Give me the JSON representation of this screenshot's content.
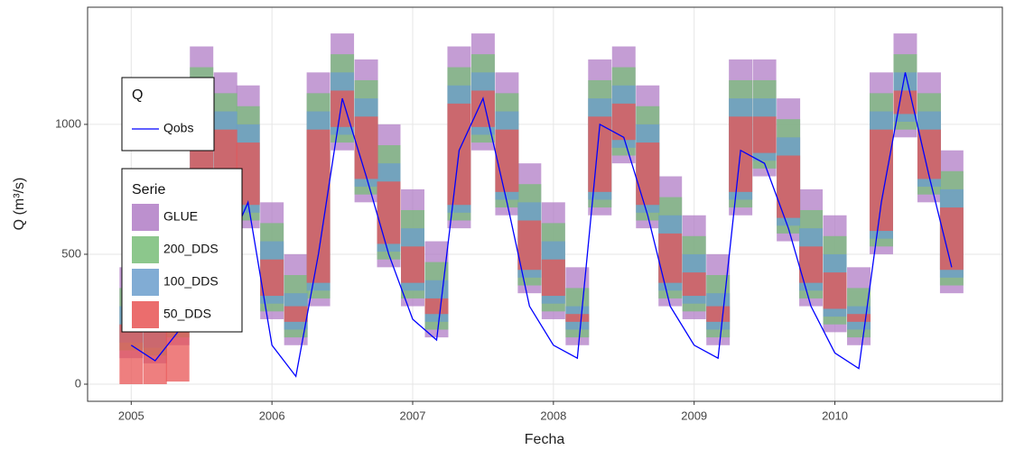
{
  "chart_data": {
    "type": "band",
    "xlabel": "Fecha",
    "ylabel": "Q (m³/s)",
    "x": [
      2005,
      2005.17,
      2005.33,
      2005.5,
      2005.67,
      2005.83,
      2006,
      2006.17,
      2006.33,
      2006.5,
      2006.67,
      2006.83,
      2007,
      2007.17,
      2007.33,
      2007.5,
      2007.67,
      2007.83,
      2008,
      2008.17,
      2008.33,
      2008.5,
      2008.67,
      2008.83,
      2009,
      2009.17,
      2009.33,
      2009.5,
      2009.67,
      2009.83,
      2010,
      2010.17,
      2010.33,
      2010.5,
      2010.67,
      2010.83
    ],
    "xlim": [
      2004.69,
      2011.19
    ],
    "xticks": [
      2005,
      2006,
      2007,
      2008,
      2009,
      2010
    ],
    "ylim": [
      -66,
      1451
    ],
    "yticks": [
      0,
      500,
      1000
    ],
    "grid": true,
    "band_legend_title": "Serie",
    "line_legend_title": "Q",
    "bands": [
      {
        "name": "GLUE",
        "color": "#b07cc6",
        "lower": [
          100,
          80,
          150,
          600,
          500,
          600,
          250,
          150,
          300,
          900,
          700,
          450,
          300,
          180,
          600,
          900,
          650,
          350,
          250,
          150,
          650,
          850,
          600,
          300,
          250,
          150,
          650,
          800,
          550,
          300,
          200,
          150,
          500,
          950,
          700,
          350
        ],
        "upper": [
          450,
          500,
          800,
          1300,
          1200,
          1150,
          700,
          500,
          1200,
          1350,
          1250,
          1000,
          750,
          550,
          1300,
          1350,
          1200,
          850,
          700,
          450,
          1250,
          1300,
          1150,
          800,
          650,
          500,
          1250,
          1250,
          1100,
          750,
          650,
          450,
          1200,
          1350,
          1200,
          900
        ]
      },
      {
        "name": "200_DDS",
        "color": "#78bd78",
        "lower": [
          130,
          110,
          180,
          630,
          530,
          630,
          280,
          180,
          330,
          930,
          730,
          480,
          330,
          210,
          630,
          930,
          680,
          380,
          280,
          180,
          680,
          880,
          630,
          330,
          280,
          180,
          680,
          830,
          580,
          330,
          230,
          180,
          530,
          980,
          730,
          380
        ],
        "upper": [
          370,
          420,
          720,
          1220,
          1120,
          1070,
          620,
          420,
          1120,
          1270,
          1170,
          920,
          670,
          470,
          1220,
          1270,
          1120,
          770,
          620,
          370,
          1170,
          1220,
          1070,
          720,
          570,
          420,
          1170,
          1170,
          1020,
          670,
          570,
          370,
          1120,
          1270,
          1120,
          820
        ]
      },
      {
        "name": "100_DDS",
        "color": "#6b9dcc",
        "lower": [
          160,
          140,
          210,
          660,
          560,
          660,
          310,
          210,
          360,
          960,
          760,
          510,
          360,
          240,
          660,
          960,
          710,
          410,
          310,
          210,
          710,
          910,
          660,
          360,
          310,
          210,
          710,
          860,
          610,
          360,
          260,
          210,
          560,
          1010,
          760,
          410
        ],
        "upper": [
          300,
          350,
          650,
          1150,
          1050,
          1000,
          550,
          350,
          1050,
          1200,
          1100,
          850,
          600,
          400,
          1150,
          1200,
          1050,
          700,
          550,
          300,
          1100,
          1150,
          1000,
          650,
          500,
          350,
          1100,
          1100,
          950,
          600,
          500,
          300,
          1050,
          1200,
          1050,
          750
        ]
      },
      {
        "name": "50_DDS",
        "color": "#e85454",
        "lower": [
          0,
          0,
          10,
          690,
          590,
          690,
          340,
          240,
          390,
          990,
          790,
          540,
          390,
          270,
          690,
          990,
          740,
          440,
          340,
          240,
          740,
          940,
          690,
          390,
          340,
          240,
          740,
          890,
          640,
          390,
          290,
          240,
          590,
          1040,
          790,
          440
        ],
        "upper": [
          230,
          280,
          580,
          1080,
          980,
          930,
          480,
          300,
          980,
          1130,
          1030,
          780,
          530,
          330,
          1080,
          1130,
          980,
          630,
          480,
          270,
          1030,
          1080,
          930,
          580,
          430,
          300,
          1030,
          1030,
          880,
          530,
          430,
          270,
          980,
          1130,
          980,
          680
        ]
      }
    ],
    "lines": [
      {
        "name": "Qobs",
        "color": "#0000ff",
        "values": [
          150,
          90,
          200,
          700,
          500,
          700,
          150,
          30,
          500,
          1100,
          800,
          500,
          250,
          170,
          900,
          1100,
          700,
          300,
          150,
          100,
          1000,
          950,
          650,
          300,
          150,
          100,
          900,
          850,
          600,
          300,
          120,
          60,
          700,
          1200,
          800,
          450
        ]
      }
    ]
  }
}
